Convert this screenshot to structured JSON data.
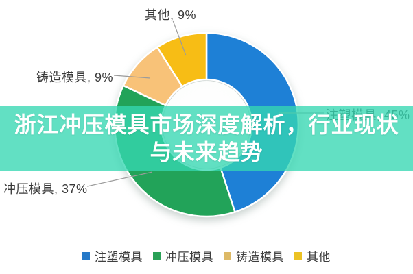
{
  "banner": {
    "line1": "浙江冲压模具市场深度解析，行业现状",
    "line2": "与未来趋势",
    "background_color": "rgba(54, 215, 178, 0.78)",
    "text_color": "#ffffff"
  },
  "chart_data": {
    "type": "pie",
    "subtype": "donut",
    "title": "",
    "categories": [
      "注塑模具",
      "冲压模具",
      "铸造模具",
      "其他"
    ],
    "values": [
      45,
      37,
      9,
      9
    ],
    "unit": "%",
    "colors": [
      "#1e80d6",
      "#22a359",
      "#f8c278",
      "#f7bd15"
    ],
    "start_angle_deg": -90,
    "direction": "clockwise",
    "inner_radius_ratio": 0.49,
    "legend_position": "bottom",
    "callouts": [
      {
        "text": "其他, 9%"
      },
      {
        "text": "铸造模具, 9%"
      },
      {
        "text": "注塑模具, 45%"
      },
      {
        "text": "冲压模具, 37%"
      }
    ]
  },
  "legend": {
    "items": [
      {
        "label": "注塑模具",
        "color": "#2579c8"
      },
      {
        "label": "冲压模具",
        "color": "#2aa157"
      },
      {
        "label": "铸造模具",
        "color": "#ddb966"
      },
      {
        "label": "其他",
        "color": "#ecc224"
      }
    ]
  }
}
